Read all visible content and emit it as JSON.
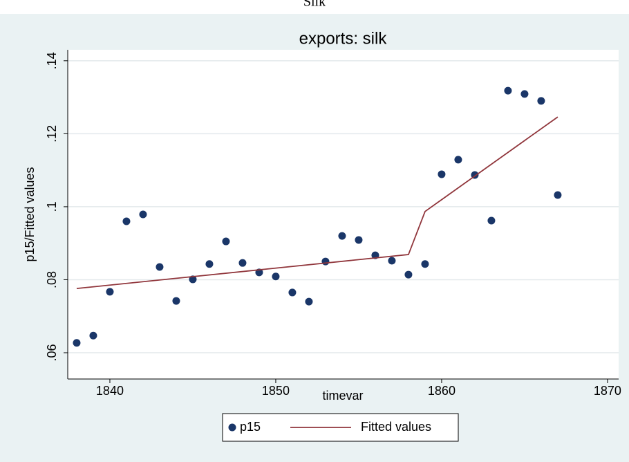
{
  "chart_data": {
    "type": "scatter_line",
    "caption": "Silk",
    "title": "exports: silk",
    "xlabel": "timevar",
    "ylabel": "p15/Fitted values",
    "xlim": [
      1837.46,
      1870.67
    ],
    "ylim": [
      0.0528,
      0.143
    ],
    "xticks": [
      1840,
      1850,
      1860,
      1870
    ],
    "yticks": [
      {
        "value": 0.06,
        "label": ".06"
      },
      {
        "value": 0.08,
        "label": ".08"
      },
      {
        "value": 0.1,
        "label": ".1"
      },
      {
        "value": 0.12,
        "label": ".12"
      },
      {
        "value": 0.14,
        "label": ".14"
      }
    ],
    "grid": true,
    "series": [
      {
        "name": "p15",
        "kind": "scatter",
        "color": "#1a3668",
        "x": [
          1838,
          1839,
          1840,
          1841,
          1842,
          1843,
          1844,
          1845,
          1846,
          1847,
          1848,
          1849,
          1850,
          1851,
          1852,
          1853,
          1854,
          1855,
          1856,
          1857,
          1858,
          1859,
          1860,
          1861,
          1862,
          1863,
          1864,
          1865,
          1866,
          1867
        ],
        "values": [
          0.0627,
          0.0647,
          0.0767,
          0.096,
          0.0979,
          0.0835,
          0.0742,
          0.0801,
          0.0843,
          0.0905,
          0.0846,
          0.082,
          0.0809,
          0.0765,
          0.074,
          0.085,
          0.092,
          0.0909,
          0.0867,
          0.0852,
          0.0814,
          0.0843,
          0.1089,
          0.1129,
          0.1087,
          0.0962,
          0.1318,
          0.1309,
          0.129,
          0.1032
        ]
      },
      {
        "name": "Fitted values",
        "kind": "line",
        "color": "#90353b",
        "x": [
          1838,
          1858,
          1859,
          1867
        ],
        "values": [
          0.0776,
          0.0869,
          0.0987,
          0.1246
        ]
      }
    ]
  }
}
